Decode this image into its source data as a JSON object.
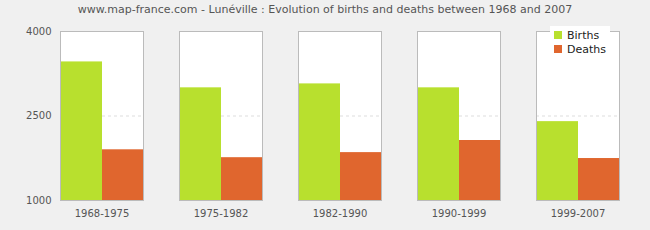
{
  "chart_data": {
    "type": "bar",
    "title": "www.map-france.com - Lunéville : Evolution of births and deaths between 1968 and 2007",
    "categories": [
      "1968-1975",
      "1975-1982",
      "1982-1990",
      "1990-1999",
      "1999-2007"
    ],
    "series": [
      {
        "name": "Births",
        "color": "#b8e02e",
        "values": [
          3460,
          3000,
          3070,
          3000,
          2400
        ]
      },
      {
        "name": "Deaths",
        "color": "#e0662e",
        "values": [
          1900,
          1760,
          1850,
          2065,
          1745
        ]
      }
    ],
    "ylim": [
      1000,
      4000
    ],
    "yticks": [
      1000,
      2500,
      4000
    ],
    "grid": true,
    "legend": "top-right"
  }
}
